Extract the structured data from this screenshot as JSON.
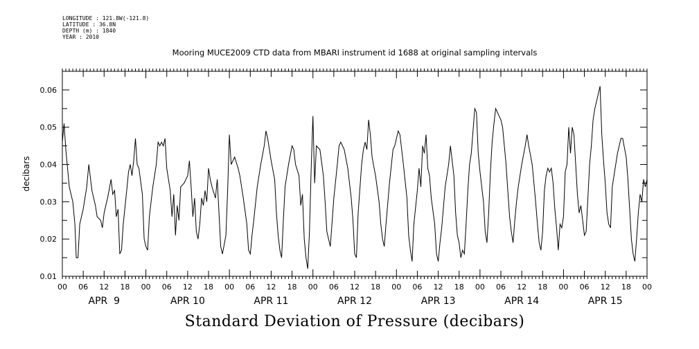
{
  "header": {
    "longitude": "LONGITUDE : 121.8W(-121.8)",
    "latitude": "LATITUDE : 36.8N",
    "depth": "DEPTH (m) : 1840",
    "year": "YEAR : 2010"
  },
  "chart_data": {
    "type": "line",
    "title": "Mooring MUCE2009 CTD data from MBARI instrument id 1688 at original sampling intervals",
    "xlabel": "Standard Deviation of Pressure (decibars)",
    "ylabel": "decibars",
    "ylim": [
      0.01,
      0.065
    ],
    "yticks": [
      "0.01",
      "0.02",
      "0.03",
      "0.04",
      "0.05",
      "0.06"
    ],
    "xrange_hours": [
      0,
      168
    ],
    "hour_tick_labels": [
      "00",
      "06",
      "12",
      "18",
      "00",
      "06",
      "12",
      "18",
      "00",
      "06",
      "12",
      "18",
      "00",
      "06",
      "12",
      "18",
      "00",
      "06",
      "12",
      "18",
      "00",
      "06",
      "12",
      "18",
      "00",
      "06",
      "12",
      "18",
      "00"
    ],
    "day_labels": [
      "APR  9",
      "APR 10",
      "APR 11",
      "APR 12",
      "APR 13",
      "APR 14",
      "APR 15"
    ],
    "grid": false,
    "series": [
      {
        "values": [
          [
            0.0,
            0.046
          ],
          [
            0.5,
            0.051
          ],
          [
            1.0,
            0.044
          ],
          [
            2.0,
            0.034
          ],
          [
            3.0,
            0.03
          ],
          [
            3.6,
            0.024
          ],
          [
            4.0,
            0.015
          ],
          [
            4.5,
            0.015
          ],
          [
            5.0,
            0.024
          ],
          [
            6.0,
            0.028
          ],
          [
            7.0,
            0.034
          ],
          [
            7.6,
            0.04
          ],
          [
            8.5,
            0.033
          ],
          [
            9.5,
            0.029
          ],
          [
            10.0,
            0.026
          ],
          [
            11.0,
            0.025
          ],
          [
            11.5,
            0.023
          ],
          [
            12.0,
            0.027
          ],
          [
            13.0,
            0.031
          ],
          [
            14.0,
            0.036
          ],
          [
            14.5,
            0.032
          ],
          [
            15.0,
            0.033
          ],
          [
            15.5,
            0.026
          ],
          [
            16.0,
            0.028
          ],
          [
            16.5,
            0.016
          ],
          [
            17.0,
            0.017
          ],
          [
            17.5,
            0.024
          ],
          [
            18.5,
            0.033
          ],
          [
            19.0,
            0.038
          ],
          [
            19.5,
            0.04
          ],
          [
            20.0,
            0.037
          ],
          [
            20.5,
            0.041
          ],
          [
            21.0,
            0.047
          ],
          [
            21.5,
            0.04
          ],
          [
            22.0,
            0.039
          ],
          [
            23.0,
            0.032
          ],
          [
            23.5,
            0.02
          ],
          [
            24.0,
            0.018
          ],
          [
            24.5,
            0.017
          ],
          [
            25.0,
            0.026
          ],
          [
            26.0,
            0.034
          ],
          [
            27.0,
            0.04
          ],
          [
            27.5,
            0.046
          ],
          [
            28.0,
            0.045
          ],
          [
            28.5,
            0.046
          ],
          [
            29.0,
            0.045
          ],
          [
            29.5,
            0.047
          ],
          [
            30.0,
            0.039
          ],
          [
            31.0,
            0.033
          ],
          [
            31.5,
            0.026
          ],
          [
            32.0,
            0.032
          ],
          [
            32.5,
            0.021
          ],
          [
            33.0,
            0.029
          ],
          [
            33.5,
            0.025
          ],
          [
            34.0,
            0.034
          ],
          [
            35.0,
            0.035
          ],
          [
            36.0,
            0.037
          ],
          [
            36.5,
            0.041
          ],
          [
            37.0,
            0.034
          ],
          [
            37.5,
            0.026
          ],
          [
            38.0,
            0.031
          ],
          [
            38.5,
            0.022
          ],
          [
            39.0,
            0.02
          ],
          [
            39.5,
            0.024
          ],
          [
            40.0,
            0.031
          ],
          [
            40.5,
            0.029
          ],
          [
            41.0,
            0.033
          ],
          [
            41.5,
            0.03
          ],
          [
            42.0,
            0.039
          ],
          [
            42.5,
            0.036
          ],
          [
            43.0,
            0.034
          ],
          [
            44.0,
            0.031
          ],
          [
            44.5,
            0.036
          ],
          [
            45.0,
            0.027
          ],
          [
            45.5,
            0.018
          ],
          [
            46.0,
            0.016
          ],
          [
            47.0,
            0.021
          ],
          [
            47.5,
            0.033
          ],
          [
            48.0,
            0.048
          ],
          [
            48.5,
            0.04
          ],
          [
            49.5,
            0.042
          ],
          [
            50.5,
            0.039
          ],
          [
            51.0,
            0.037
          ],
          [
            52.0,
            0.031
          ],
          [
            53.0,
            0.024
          ],
          [
            53.5,
            0.017
          ],
          [
            54.0,
            0.016
          ],
          [
            54.5,
            0.021
          ],
          [
            55.0,
            0.025
          ],
          [
            56.0,
            0.034
          ],
          [
            57.0,
            0.04
          ],
          [
            58.0,
            0.045
          ],
          [
            58.5,
            0.049
          ],
          [
            59.0,
            0.047
          ],
          [
            60.0,
            0.041
          ],
          [
            61.0,
            0.036
          ],
          [
            61.5,
            0.027
          ],
          [
            62.0,
            0.021
          ],
          [
            62.5,
            0.017
          ],
          [
            63.0,
            0.015
          ],
          [
            63.5,
            0.025
          ],
          [
            64.0,
            0.034
          ],
          [
            65.0,
            0.04
          ],
          [
            66.0,
            0.045
          ],
          [
            66.5,
            0.044
          ],
          [
            67.0,
            0.04
          ],
          [
            68.0,
            0.037
          ],
          [
            68.5,
            0.029
          ],
          [
            69.0,
            0.032
          ],
          [
            69.5,
            0.02
          ],
          [
            70.0,
            0.015
          ],
          [
            70.5,
            0.012
          ],
          [
            71.0,
            0.022
          ],
          [
            71.5,
            0.039
          ],
          [
            72.0,
            0.053
          ],
          [
            72.5,
            0.035
          ],
          [
            73.0,
            0.045
          ],
          [
            74.0,
            0.044
          ],
          [
            75.0,
            0.037
          ],
          [
            75.5,
            0.03
          ],
          [
            76.0,
            0.022
          ],
          [
            76.5,
            0.02
          ],
          [
            77.0,
            0.018
          ],
          [
            78.0,
            0.031
          ],
          [
            79.0,
            0.04
          ],
          [
            79.5,
            0.045
          ],
          [
            80.0,
            0.046
          ],
          [
            81.0,
            0.044
          ],
          [
            82.0,
            0.039
          ],
          [
            83.0,
            0.031
          ],
          [
            83.5,
            0.025
          ],
          [
            84.0,
            0.016
          ],
          [
            84.5,
            0.015
          ],
          [
            85.0,
            0.027
          ],
          [
            86.0,
            0.04
          ],
          [
            86.5,
            0.044
          ],
          [
            87.0,
            0.046
          ],
          [
            87.5,
            0.044
          ],
          [
            88.0,
            0.052
          ],
          [
            88.5,
            0.048
          ],
          [
            89.0,
            0.042
          ],
          [
            90.0,
            0.037
          ],
          [
            91.0,
            0.03
          ],
          [
            91.5,
            0.024
          ],
          [
            92.0,
            0.02
          ],
          [
            92.5,
            0.018
          ],
          [
            93.0,
            0.024
          ],
          [
            94.0,
            0.035
          ],
          [
            95.0,
            0.044
          ],
          [
            95.5,
            0.045
          ],
          [
            96.0,
            0.047
          ],
          [
            96.5,
            0.049
          ],
          [
            97.0,
            0.048
          ],
          [
            98.0,
            0.04
          ],
          [
            99.0,
            0.031
          ],
          [
            99.5,
            0.021
          ],
          [
            100.0,
            0.017
          ],
          [
            100.5,
            0.014
          ],
          [
            101.0,
            0.024
          ],
          [
            102.0,
            0.033
          ],
          [
            102.5,
            0.039
          ],
          [
            103.0,
            0.034
          ],
          [
            103.5,
            0.045
          ],
          [
            104.0,
            0.043
          ],
          [
            104.5,
            0.048
          ],
          [
            105.0,
            0.039
          ],
          [
            105.5,
            0.037
          ],
          [
            106.0,
            0.031
          ],
          [
            107.0,
            0.024
          ],
          [
            107.5,
            0.016
          ],
          [
            108.0,
            0.014
          ],
          [
            108.5,
            0.019
          ],
          [
            109.0,
            0.023
          ],
          [
            110.0,
            0.034
          ],
          [
            110.5,
            0.037
          ],
          [
            111.0,
            0.04
          ],
          [
            111.5,
            0.045
          ],
          [
            112.0,
            0.041
          ],
          [
            112.5,
            0.037
          ],
          [
            113.0,
            0.027
          ],
          [
            113.5,
            0.021
          ],
          [
            114.0,
            0.019
          ],
          [
            114.5,
            0.015
          ],
          [
            115.0,
            0.017
          ],
          [
            115.5,
            0.016
          ],
          [
            116.0,
            0.024
          ],
          [
            116.5,
            0.033
          ],
          [
            117.0,
            0.04
          ],
          [
            117.5,
            0.043
          ],
          [
            118.0,
            0.049
          ],
          [
            118.5,
            0.055
          ],
          [
            119.0,
            0.054
          ],
          [
            119.5,
            0.043
          ],
          [
            120.0,
            0.038
          ],
          [
            121.0,
            0.03
          ],
          [
            121.5,
            0.022
          ],
          [
            122.0,
            0.019
          ],
          [
            122.5,
            0.027
          ],
          [
            123.0,
            0.038
          ],
          [
            123.5,
            0.046
          ],
          [
            124.0,
            0.051
          ],
          [
            124.5,
            0.055
          ],
          [
            125.0,
            0.054
          ],
          [
            126.0,
            0.052
          ],
          [
            126.5,
            0.05
          ],
          [
            127.0,
            0.045
          ],
          [
            127.5,
            0.04
          ],
          [
            128.0,
            0.033
          ],
          [
            128.5,
            0.026
          ],
          [
            129.0,
            0.022
          ],
          [
            129.5,
            0.019
          ],
          [
            130.0,
            0.025
          ],
          [
            130.5,
            0.03
          ],
          [
            131.0,
            0.034
          ],
          [
            132.0,
            0.04
          ],
          [
            133.0,
            0.045
          ],
          [
            133.5,
            0.048
          ],
          [
            134.0,
            0.045
          ],
          [
            135.0,
            0.04
          ],
          [
            136.0,
            0.03
          ],
          [
            136.5,
            0.024
          ],
          [
            137.0,
            0.019
          ],
          [
            137.5,
            0.017
          ],
          [
            138.0,
            0.022
          ],
          [
            138.5,
            0.033
          ],
          [
            139.0,
            0.037
          ],
          [
            139.5,
            0.039
          ],
          [
            140.0,
            0.038
          ],
          [
            140.5,
            0.039
          ],
          [
            141.0,
            0.035
          ],
          [
            141.5,
            0.028
          ],
          [
            142.0,
            0.023
          ],
          [
            142.5,
            0.017
          ],
          [
            143.0,
            0.024
          ],
          [
            143.5,
            0.023
          ],
          [
            144.0,
            0.026
          ],
          [
            144.5,
            0.038
          ],
          [
            145.0,
            0.04
          ],
          [
            145.5,
            0.05
          ],
          [
            146.0,
            0.043
          ],
          [
            146.5,
            0.05
          ],
          [
            147.0,
            0.048
          ],
          [
            147.5,
            0.04
          ],
          [
            148.0,
            0.032
          ],
          [
            148.5,
            0.027
          ],
          [
            149.0,
            0.029
          ],
          [
            149.5,
            0.025
          ],
          [
            150.0,
            0.021
          ],
          [
            150.5,
            0.022
          ],
          [
            151.0,
            0.031
          ],
          [
            151.5,
            0.04
          ],
          [
            152.0,
            0.045
          ],
          [
            152.5,
            0.052
          ],
          [
            153.0,
            0.055
          ],
          [
            153.5,
            0.057
          ],
          [
            154.0,
            0.059
          ],
          [
            154.5,
            0.061
          ],
          [
            155.0,
            0.048
          ],
          [
            155.5,
            0.041
          ],
          [
            156.0,
            0.035
          ],
          [
            156.5,
            0.027
          ],
          [
            157.0,
            0.024
          ],
          [
            157.5,
            0.023
          ],
          [
            158.0,
            0.034
          ],
          [
            159.0,
            0.04
          ],
          [
            159.5,
            0.043
          ],
          [
            160.0,
            0.045
          ],
          [
            160.5,
            0.047
          ],
          [
            161.0,
            0.047
          ],
          [
            162.0,
            0.042
          ],
          [
            162.5,
            0.036
          ],
          [
            163.0,
            0.028
          ],
          [
            163.5,
            0.02
          ],
          [
            164.0,
            0.016
          ],
          [
            164.5,
            0.014
          ],
          [
            165.0,
            0.02
          ],
          [
            165.5,
            0.027
          ],
          [
            166.0,
            0.032
          ],
          [
            166.5,
            0.03
          ],
          [
            167.0,
            0.036
          ],
          [
            167.5,
            0.034
          ],
          [
            168.0,
            0.036
          ]
        ]
      }
    ]
  }
}
